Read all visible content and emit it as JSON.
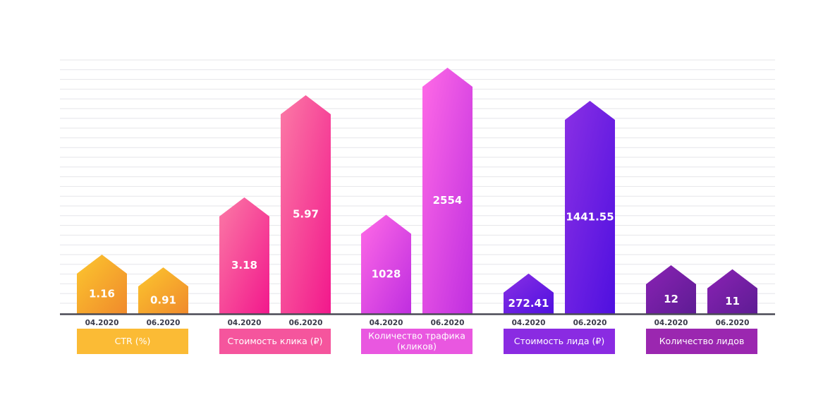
{
  "chart_data": {
    "type": "bar",
    "title": "",
    "xlabel": "",
    "ylabel": "",
    "grid": true,
    "periods": [
      "04.2020",
      "06.2020"
    ],
    "groups": [
      {
        "name": "CTR (%)",
        "name_lines": [
          "CTR (%)"
        ],
        "values": [
          1.16,
          0.91
        ],
        "value_labels": [
          "1.16",
          "0.91"
        ],
        "color_top": "#fcc72e",
        "color_bottom": "#f08a2c",
        "label_color": "#fbbb35"
      },
      {
        "name": "Стоимость клика (₽)",
        "name_lines": [
          "Стоимость клика (₽)"
        ],
        "values": [
          3.18,
          5.97
        ],
        "value_labels": [
          "3.18",
          "5.97"
        ],
        "color_top": "#fb7aa6",
        "color_bottom": "#f2188c",
        "label_color": "#f5559d"
      },
      {
        "name": "Количество трафика (кликов)",
        "name_lines": [
          "Количество трафика",
          "(кликов)"
        ],
        "values": [
          1028,
          2554
        ],
        "value_labels": [
          "1028",
          "2554"
        ],
        "color_top": "#ff6ae6",
        "color_bottom": "#bf2ee0",
        "label_color": "#e957e0"
      },
      {
        "name": "Стоимость лида (₽)",
        "name_lines": [
          "Стоимость лида (₽)"
        ],
        "values": [
          272.41,
          1441.55
        ],
        "value_labels": [
          "272.41",
          "1441.55"
        ],
        "color_top": "#8a30e4",
        "color_bottom": "#4f10e0",
        "label_color": "#8a2be2"
      },
      {
        "name": "Количество лидов",
        "name_lines": [
          "Количество лидов"
        ],
        "values": [
          12,
          11
        ],
        "value_labels": [
          "12",
          "11"
        ],
        "color_top": "#8a22b4",
        "color_bottom": "#5e1c94",
        "label_color": "#9b27b0"
      }
    ]
  }
}
